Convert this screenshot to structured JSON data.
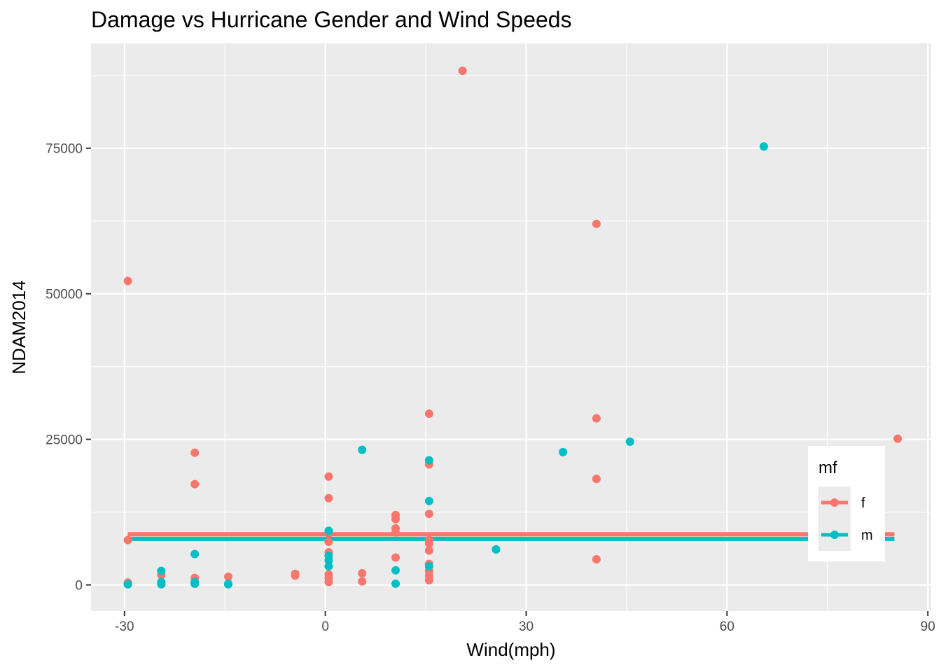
{
  "chart_data": {
    "type": "scatter",
    "title": "Damage vs Hurricane Gender and Wind Speeds",
    "xlabel": "Wind(mph)",
    "ylabel": "NDAM2014",
    "xlim": [
      -35,
      90.5
    ],
    "ylim": [
      -4500,
      93000
    ],
    "x_ticks": [
      -30,
      0,
      30,
      60,
      90
    ],
    "y_ticks": [
      0,
      25000,
      50000,
      75000
    ],
    "grid": true,
    "legend": {
      "title": "mf",
      "placement": "right"
    },
    "colors": {
      "f": "#F8766D",
      "m": "#00BFC4",
      "panel": "#EBEBEB",
      "grid": "#FFFFFF"
    },
    "series": [
      {
        "name": "f",
        "color": "#F8766D",
        "mean_line": {
          "x_from": -29.5,
          "x_to": 85,
          "y": 8700
        },
        "points": [
          [
            -29.5,
            52200
          ],
          [
            -29.5,
            7700
          ],
          [
            -29.5,
            400
          ],
          [
            -29.5,
            150
          ],
          [
            -24.5,
            1700
          ],
          [
            -24.5,
            400
          ],
          [
            -19.5,
            22700
          ],
          [
            -19.5,
            17300
          ],
          [
            -19.5,
            1200
          ],
          [
            -19.5,
            200
          ],
          [
            -14.5,
            1400
          ],
          [
            -4.5,
            1900
          ],
          [
            -4.5,
            1600
          ],
          [
            0.5,
            18600
          ],
          [
            0.5,
            14900
          ],
          [
            0.5,
            8800
          ],
          [
            0.5,
            7400
          ],
          [
            0.5,
            5600
          ],
          [
            0.5,
            1800
          ],
          [
            0.5,
            1200
          ],
          [
            0.5,
            500
          ],
          [
            5.5,
            2000
          ],
          [
            5.5,
            600
          ],
          [
            10.5,
            12000
          ],
          [
            10.5,
            11300
          ],
          [
            10.5,
            9700
          ],
          [
            10.5,
            9000
          ],
          [
            10.5,
            4700
          ],
          [
            15.5,
            29400
          ],
          [
            15.5,
            20700
          ],
          [
            15.5,
            12200
          ],
          [
            15.5,
            7700
          ],
          [
            15.5,
            7100
          ],
          [
            15.5,
            5900
          ],
          [
            15.5,
            3600
          ],
          [
            15.5,
            2400
          ],
          [
            15.5,
            1600
          ],
          [
            15.5,
            800
          ],
          [
            20.5,
            88300
          ],
          [
            40.5,
            62000
          ],
          [
            40.5,
            28600
          ],
          [
            40.5,
            18200
          ],
          [
            40.5,
            4400
          ],
          [
            85.5,
            25100
          ]
        ]
      },
      {
        "name": "m",
        "color": "#00BFC4",
        "mean_line": {
          "x_from": -29.5,
          "x_to": 85,
          "y": 7900
        },
        "points": [
          [
            -29.5,
            100
          ],
          [
            -24.5,
            2400
          ],
          [
            -24.5,
            500
          ],
          [
            -24.5,
            100
          ],
          [
            -19.5,
            5300
          ],
          [
            -19.5,
            500
          ],
          [
            -19.5,
            200
          ],
          [
            -14.5,
            200
          ],
          [
            -14.5,
            100
          ],
          [
            0.5,
            9300
          ],
          [
            0.5,
            5000
          ],
          [
            0.5,
            4200
          ],
          [
            0.5,
            3200
          ],
          [
            5.5,
            23200
          ],
          [
            10.5,
            2500
          ],
          [
            10.5,
            200
          ],
          [
            15.5,
            21400
          ],
          [
            15.5,
            14400
          ],
          [
            15.5,
            3200
          ],
          [
            25.5,
            6100
          ],
          [
            35.5,
            22800
          ],
          [
            45.5,
            24600
          ],
          [
            65.5,
            75300
          ]
        ]
      }
    ]
  }
}
